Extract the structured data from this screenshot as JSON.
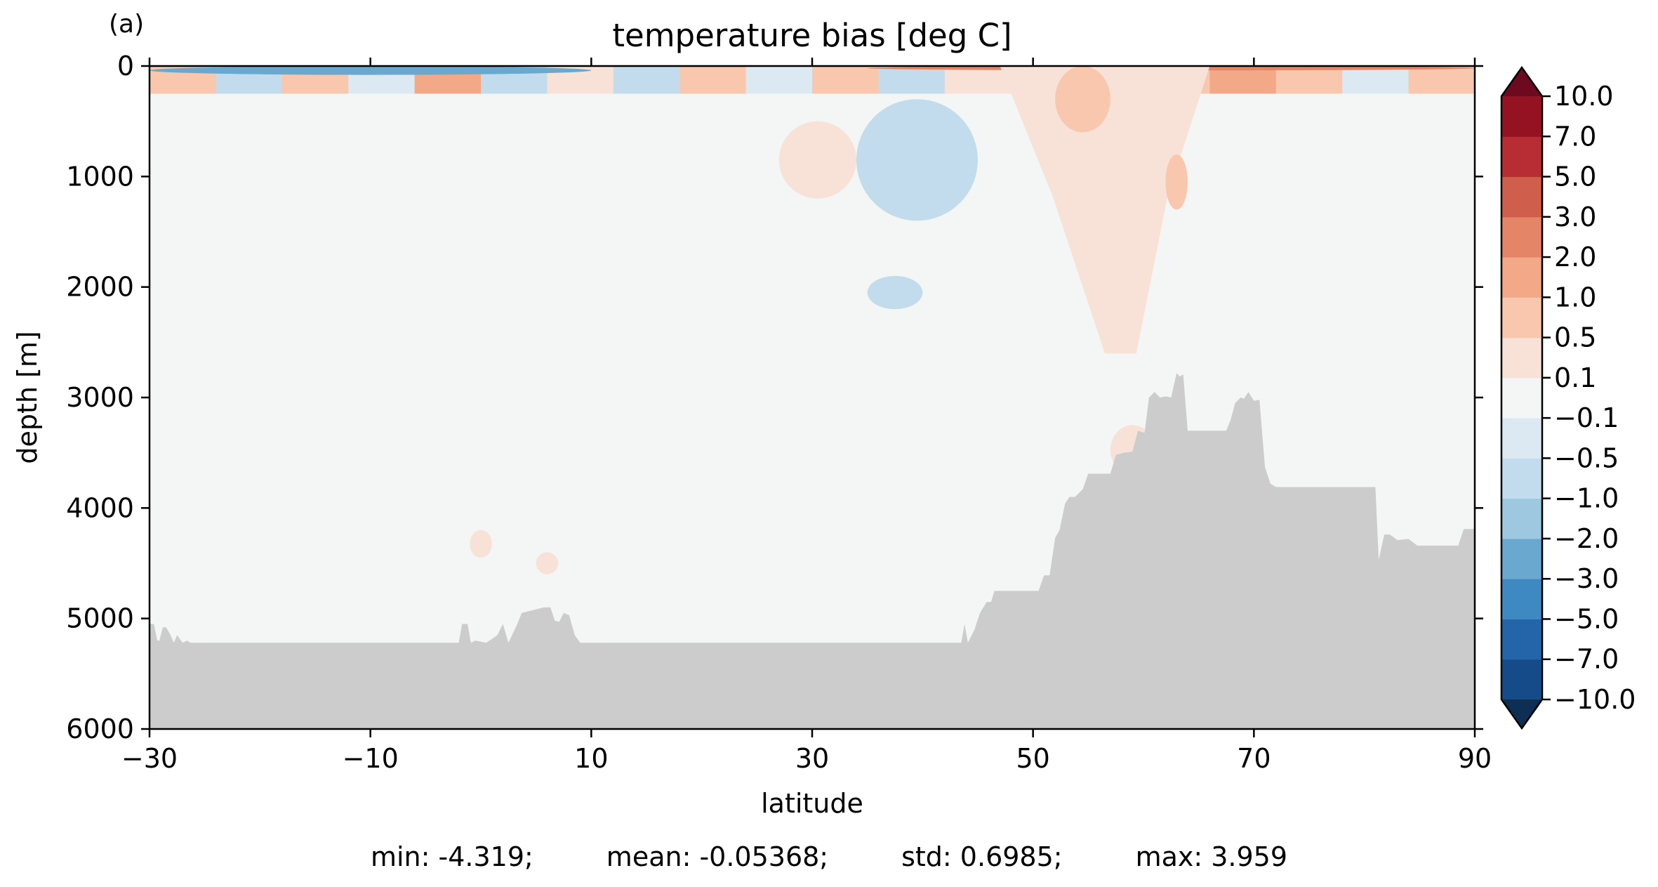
{
  "panel_label": "(a)",
  "stats": {
    "min": "min: -4.319;",
    "mean": "mean: -0.05368;",
    "std": "std: 0.6985;",
    "max": "max: 3.959"
  },
  "colors": {
    "background_field": "#f4f5f5",
    "land": "#cccccc",
    "axes": "#000000"
  },
  "chart_data": {
    "type": "heatmap",
    "title": "temperature bias [deg C]",
    "xlabel": "latitude",
    "ylabel": "depth [m]",
    "xlim": [
      -30,
      90
    ],
    "ylim": [
      6000,
      0
    ],
    "y_inverted": true,
    "xticks": [
      -30,
      -10,
      10,
      30,
      50,
      70,
      90
    ],
    "xtick_labels": [
      "−30",
      "−10",
      "10",
      "30",
      "50",
      "70",
      "90"
    ],
    "yticks": [
      0,
      1000,
      2000,
      3000,
      4000,
      5000,
      6000
    ],
    "ytick_labels": [
      "0",
      "1000",
      "2000",
      "3000",
      "4000",
      "5000",
      "6000"
    ],
    "colorbar": {
      "levels": [
        -10.0,
        -7.0,
        -5.0,
        -3.0,
        -2.0,
        -1.0,
        -0.5,
        -0.1,
        0.1,
        0.5,
        1.0,
        2.0,
        3.0,
        5.0,
        7.0,
        10.0
      ],
      "tick_labels": [
        "−10.0",
        "−7.0",
        "−5.0",
        "−3.0",
        "−2.0",
        "−1.0",
        "−0.5",
        "−0.1",
        "0.1",
        "0.5",
        "1.0",
        "2.0",
        "3.0",
        "5.0",
        "7.0",
        "10.0"
      ],
      "colors": [
        "#154b88",
        "#2465aa",
        "#3e89c1",
        "#6aa8cf",
        "#9dc8e0",
        "#c2dced",
        "#dde9f2",
        "#f4f5f5",
        "#f8e1d6",
        "#f9c7ae",
        "#f3a887",
        "#e58567",
        "#d05e4c",
        "#b82d34",
        "#951223"
      ],
      "extend_low": "#0d2f56",
      "extend_high": "#6d0a1f",
      "extend": "both"
    },
    "bathymetry": {
      "lat": [
        -30,
        -29.6,
        -29.3,
        -29.1,
        -28.8,
        -28.5,
        -28.1,
        -27.8,
        -27.5,
        -27.0,
        -26.6,
        -26.3,
        -26.0,
        -25.6,
        -25.2,
        -24.8,
        -24.0,
        -2.0,
        -1.7,
        -1.2,
        -0.9,
        -0.5,
        0.5,
        1.5,
        2.0,
        2.5,
        3.3,
        3.7,
        5.7,
        6.3,
        6.7,
        7.1,
        7.5,
        8.0,
        8.5,
        9.0,
        9.5,
        43.5,
        43.8,
        44.1,
        44.7,
        45.2,
        45.8,
        46.2,
        46.5,
        47.0,
        50.5,
        51.0,
        51.5,
        52.0,
        52.4,
        52.9,
        53.3,
        53.8,
        54.5,
        55.0,
        57.0,
        57.5,
        58.2,
        59.0,
        59.5,
        60.1,
        60.5,
        61.0,
        61.5,
        62.0,
        62.5,
        63.0,
        63.3,
        63.6,
        64.0,
        64.5,
        67.5,
        67.9,
        68.3,
        68.8,
        69.1,
        69.5,
        70.0,
        70.5,
        71.0,
        71.5,
        72.0,
        73.0,
        81.0,
        81.3,
        81.8,
        82.3,
        83.0,
        84.0,
        84.8,
        88.5,
        89.0,
        90.0
      ],
      "depth": [
        5050,
        5050,
        5200,
        5200,
        5080,
        5080,
        5150,
        5220,
        5150,
        5220,
        5200,
        5220,
        5220,
        5220,
        5220,
        5220,
        5220,
        5220,
        5050,
        5050,
        5220,
        5200,
        5220,
        5150,
        5050,
        5220,
        5050,
        4950,
        4900,
        4900,
        5020,
        5030,
        4950,
        4970,
        5150,
        5220,
        5220,
        5220,
        5050,
        5220,
        5100,
        4950,
        4850,
        4850,
        4750,
        4750,
        4750,
        4610,
        4610,
        4270,
        4200,
        3960,
        3900,
        3900,
        3830,
        3690,
        3690,
        3520,
        3500,
        3490,
        3300,
        3320,
        3000,
        2950,
        3000,
        2990,
        3000,
        2780,
        2810,
        2790,
        3300,
        3300,
        3300,
        3200,
        3050,
        3000,
        3010,
        2950,
        3030,
        3020,
        3630,
        3780,
        3810,
        3810,
        3810,
        4470,
        4240,
        4240,
        4290,
        4280,
        4340,
        4340,
        4190,
        4190
      ]
    },
    "features": [
      {
        "kind": "upper_mixed_layer",
        "lat_range": [
          -30,
          90
        ],
        "depth_range": [
          0,
          250
        ],
        "bias": "alternating -1.0..+2.0"
      },
      {
        "kind": "cold_surface_band",
        "lat_range": [
          -30,
          10
        ],
        "depth_range": [
          0,
          80
        ],
        "bias": -2.0
      },
      {
        "kind": "warm_surface_band",
        "lat_range": [
          35,
          90
        ],
        "depth_range": [
          0,
          40
        ],
        "bias": 3.0
      },
      {
        "kind": "warm_plume",
        "lat_range": [
          47,
          66
        ],
        "depth_range": [
          0,
          2600
        ],
        "bias": 0.5
      },
      {
        "kind": "warm_core",
        "lat_range": [
          52,
          57
        ],
        "depth_range": [
          0,
          600
        ],
        "bias": 1.0
      },
      {
        "kind": "warm_core",
        "lat_range": [
          62,
          64
        ],
        "depth_range": [
          800,
          1300
        ],
        "bias": 1.0
      },
      {
        "kind": "warm_patch",
        "lat_range": [
          27,
          34
        ],
        "depth_range": [
          500,
          1200
        ],
        "bias": 0.5
      },
      {
        "kind": "cold_patch",
        "lat_range": [
          34,
          45
        ],
        "depth_range": [
          300,
          1400
        ],
        "bias": -0.5
      },
      {
        "kind": "cold_patch",
        "lat_range": [
          35,
          40
        ],
        "depth_range": [
          1900,
          2200
        ],
        "bias": -0.5
      },
      {
        "kind": "warm_patch",
        "lat_range": [
          -1,
          1
        ],
        "depth_range": [
          4200,
          4450
        ],
        "bias": 0.5
      },
      {
        "kind": "warm_patch",
        "lat_range": [
          5,
          7
        ],
        "depth_range": [
          4400,
          4600
        ],
        "bias": 0.5
      },
      {
        "kind": "warm_patch",
        "lat_range": [
          57,
          61
        ],
        "depth_range": [
          3250,
          3700
        ],
        "bias": 0.5
      }
    ]
  }
}
